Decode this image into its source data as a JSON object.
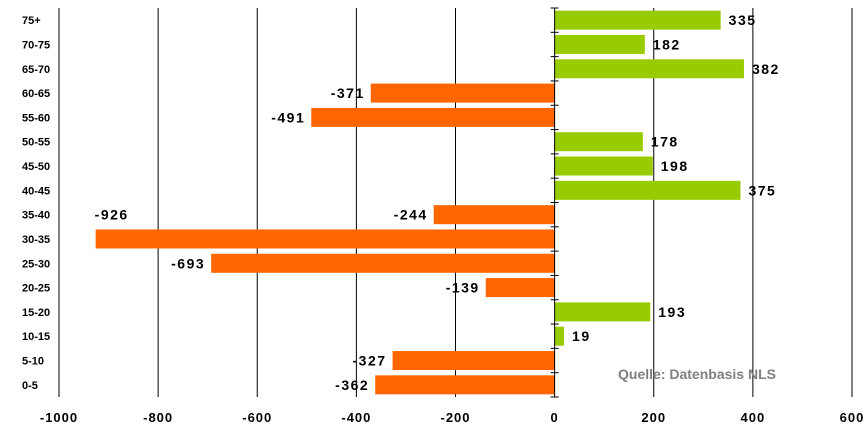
{
  "chart_data": {
    "type": "bar",
    "orientation": "horizontal",
    "categories": [
      "75+",
      "70-75",
      "65-70",
      "60-65",
      "55-60",
      "50-55",
      "45-50",
      "40-45",
      "35-40",
      "30-35",
      "25-30",
      "20-25",
      "15-20",
      "10-15",
      "5-10",
      "0-5"
    ],
    "values": [
      335,
      182,
      382,
      -371,
      -491,
      178,
      198,
      375,
      -244,
      -926,
      -693,
      -139,
      193,
      19,
      -327,
      -362
    ],
    "xlim": [
      -1000,
      600
    ],
    "xticks": [
      -1000,
      -800,
      -600,
      -400,
      -200,
      0,
      200,
      400,
      600
    ],
    "grid": true,
    "colors": {
      "positive": "#99CC00",
      "negative": "#FF6600"
    },
    "annotation": "Quelle: Datenbasis NLS",
    "title": "",
    "xlabel": "",
    "ylabel": ""
  }
}
